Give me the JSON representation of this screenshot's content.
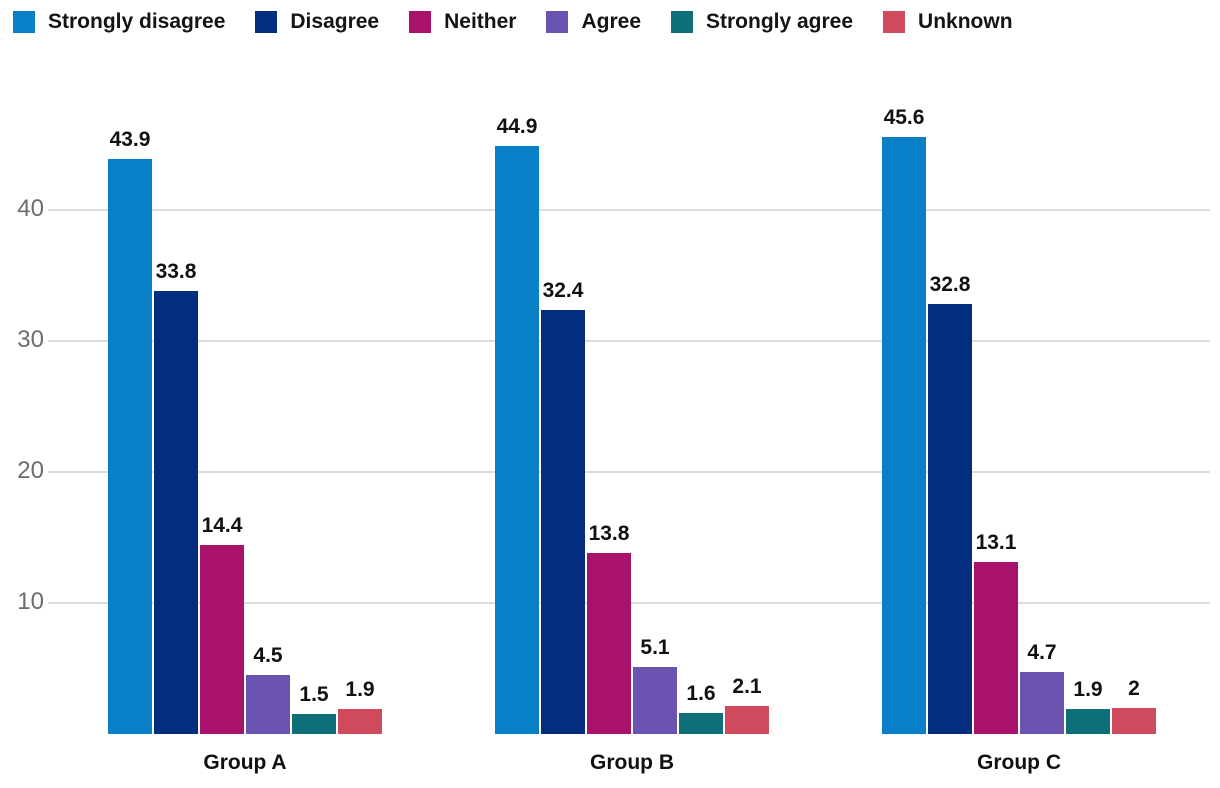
{
  "chart_data": {
    "type": "bar",
    "title": "",
    "categories": [
      "Group A",
      "Group B",
      "Group C"
    ],
    "series": [
      {
        "name": "Strongly disagree",
        "color": "#0880c8",
        "values": [
          43.9,
          44.9,
          45.6
        ]
      },
      {
        "name": "Disagree",
        "color": "#032d7e",
        "values": [
          33.8,
          32.4,
          32.8
        ]
      },
      {
        "name": "Neither",
        "color": "#a8126c",
        "values": [
          14.4,
          13.8,
          13.1
        ]
      },
      {
        "name": "Agree",
        "color": "#6b54b1",
        "values": [
          4.5,
          5.1,
          4.7
        ]
      },
      {
        "name": "Strongly agree",
        "color": "#0e6f78",
        "values": [
          1.5,
          1.6,
          1.9
        ]
      },
      {
        "name": "Unknown",
        "color": "#cf4a5c",
        "values": [
          1.9,
          2.1,
          2
        ]
      }
    ],
    "y_ticks": [
      10,
      20,
      30,
      40
    ],
    "ylim": [
      0,
      48
    ],
    "grid": "horizontal",
    "legend_position": "top-left",
    "colors": {
      "axis": "#4c4c4c",
      "gridline": "#dcdcdc",
      "tick_label": "#6d6d6d",
      "value_label": "#111111",
      "category_label": "#111111"
    }
  }
}
